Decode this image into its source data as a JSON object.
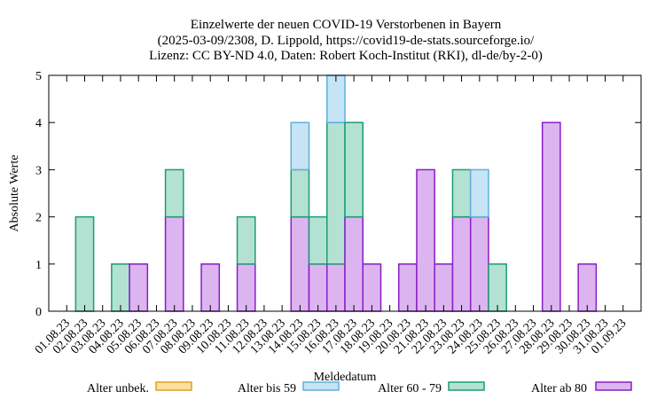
{
  "chart_data": {
    "type": "bar",
    "stacked": true,
    "title": [
      "Einzelwerte der neuen COVID-19 Verstorbenen in Bayern",
      "(2025-03-09/2308, D. Lippold, https://covid19-de-stats.sourceforge.io/",
      "Lizenz: CC BY-ND 4.0, Daten: Robert Koch-Institut (RKI), dl-de/by-2-0)"
    ],
    "xlabel": "Meldedatum",
    "ylabel": "Absolute Werte",
    "ylim": [
      0,
      5
    ],
    "yticks": [
      "0",
      "1",
      "2",
      "3",
      "4",
      "5"
    ],
    "grid": false,
    "legend_position": "bottom",
    "categories": [
      "01.08.23",
      "02.08.23",
      "03.08.23",
      "04.08.23",
      "05.08.23",
      "06.08.23",
      "07.08.23",
      "08.08.23",
      "09.08.23",
      "10.08.23",
      "11.08.23",
      "12.08.23",
      "13.08.23",
      "14.08.23",
      "15.08.23",
      "16.08.23",
      "17.08.23",
      "18.08.23",
      "19.08.23",
      "20.08.23",
      "21.08.23",
      "22.08.23",
      "23.08.23",
      "24.08.23",
      "25.08.23",
      "26.08.23",
      "27.08.23",
      "28.08.23",
      "29.08.23",
      "30.08.23",
      "31.08.23",
      "01.09.23"
    ],
    "series": [
      {
        "name": "Alter unbek.",
        "fill": "#fbe0a0",
        "stroke": "#e0a020",
        "values": [
          0,
          0,
          0,
          0,
          0,
          0,
          0,
          0,
          0,
          0,
          0,
          0,
          0,
          0,
          0,
          0,
          0,
          0,
          0,
          0,
          0,
          0,
          0,
          0,
          0,
          0,
          0,
          0,
          0,
          0,
          0,
          0
        ]
      },
      {
        "name": "Alter bis 59",
        "fill": "#c6e4f5",
        "stroke": "#5eb0dc",
        "values": [
          0,
          0,
          0,
          0,
          0,
          0,
          0,
          0,
          0,
          0,
          0,
          0,
          0,
          1,
          0,
          1,
          0,
          0,
          0,
          0,
          0,
          0,
          0,
          1,
          0,
          0,
          0,
          0,
          0,
          0,
          0,
          0
        ]
      },
      {
        "name": "Alter 60 - 79",
        "fill": "#b3e2d2",
        "stroke": "#1a9c74",
        "values": [
          0,
          2,
          0,
          1,
          0,
          0,
          1,
          0,
          0,
          0,
          1,
          0,
          0,
          1,
          1,
          3,
          2,
          0,
          0,
          0,
          0,
          0,
          1,
          0,
          1,
          0,
          0,
          0,
          0,
          0,
          0,
          0
        ]
      },
      {
        "name": "Alter ab 80",
        "fill": "#dcb5f0",
        "stroke": "#8a1cc8",
        "values": [
          0,
          0,
          0,
          0,
          1,
          0,
          2,
          0,
          1,
          0,
          1,
          0,
          0,
          2,
          1,
          1,
          2,
          1,
          0,
          1,
          3,
          1,
          2,
          2,
          0,
          0,
          0,
          4,
          0,
          1,
          0,
          0
        ]
      }
    ]
  }
}
